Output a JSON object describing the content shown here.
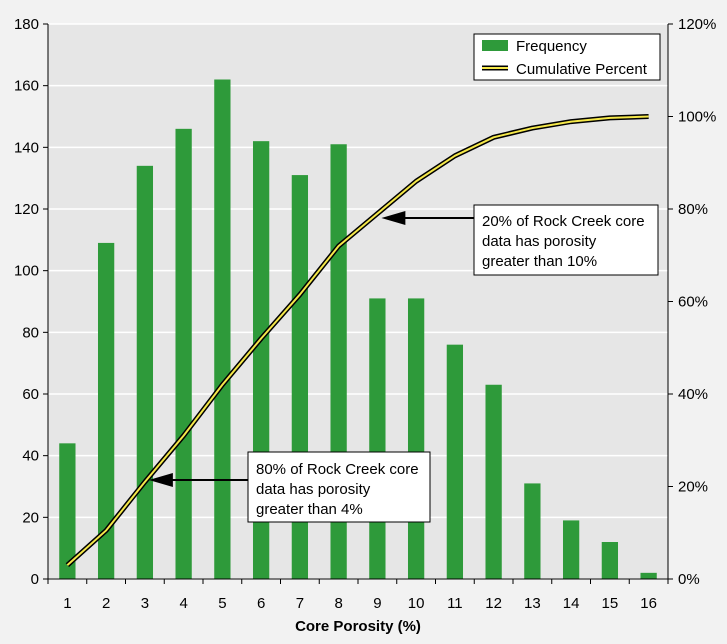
{
  "chart_data": {
    "type": "bar",
    "categories": [
      "1",
      "2",
      "3",
      "4",
      "5",
      "6",
      "7",
      "8",
      "9",
      "10",
      "11",
      "12",
      "13",
      "14",
      "15",
      "16"
    ],
    "series": [
      {
        "name": "Frequency",
        "type": "bar",
        "axis": "left",
        "values": [
          44,
          109,
          134,
          146,
          162,
          142,
          131,
          141,
          91,
          91,
          76,
          63,
          31,
          19,
          12,
          2
        ]
      },
      {
        "name": "Cumulative Percent",
        "type": "line",
        "axis": "right",
        "values": [
          3,
          10.5,
          21,
          31,
          42,
          52,
          61.5,
          72,
          79,
          86,
          91.5,
          95.5,
          97.5,
          98.9,
          99.7,
          100
        ]
      }
    ],
    "title": "",
    "xlabel": "Core Porosity (%)",
    "ylabel": "",
    "ylim": [
      0,
      180
    ],
    "y_ticks": [
      "0",
      "20",
      "40",
      "60",
      "80",
      "100",
      "120",
      "140",
      "160",
      "180"
    ],
    "y2lim": [
      0,
      120
    ],
    "y2_ticks": [
      "0%",
      "20%",
      "40%",
      "60%",
      "80%",
      "100%",
      "120%"
    ],
    "legend_position": "top-right",
    "grid": "horizontal",
    "colors": {
      "bar": "#2e9a3a",
      "line_outer": "#000000",
      "line_inner": "#f5e84a",
      "plot_bg": "#e6e6e6"
    },
    "annotations": [
      {
        "lines": [
          "20% of Rock Creek core",
          "data has porosity",
          "greater than 10%"
        ],
        "target_x": 9,
        "target_y2": 79
      },
      {
        "lines": [
          "80% of Rock Creek core",
          "data has porosity",
          "greater than 4%"
        ],
        "target_x": 3,
        "target_y2": 21
      }
    ]
  }
}
